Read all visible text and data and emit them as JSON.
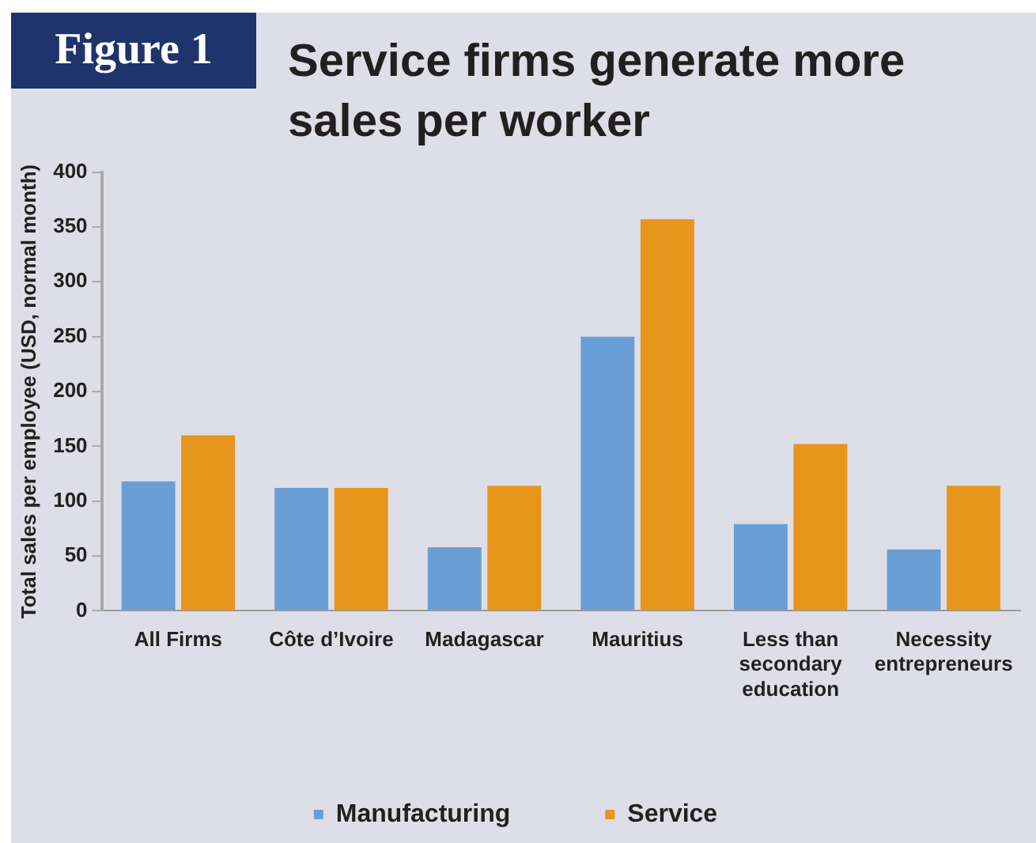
{
  "chart_data": {
    "type": "bar",
    "title": "Service firms generate more sales per worker",
    "annotations": [
      "Figure 1"
    ],
    "ylabel": "Total sales per employee (USD, normal month)",
    "categories": [
      "All Firms",
      "Côte d’Ivoire",
      "Madagascar",
      "Mauritius",
      "Less than secondary education",
      "Necessity entrepreneurs"
    ],
    "series": [
      {
        "name": "Manufacturing",
        "color": "#6a9fd5",
        "values": [
          118,
          112,
          58,
          250,
          79,
          56
        ]
      },
      {
        "name": "Service",
        "color": "#e8951b",
        "values": [
          160,
          112,
          114,
          357,
          152,
          114
        ]
      }
    ],
    "ylim": [
      0,
      400
    ],
    "yticks": [
      0,
      50,
      100,
      150,
      200,
      250,
      300,
      350,
      400
    ],
    "grid": false,
    "legend": "bottom"
  }
}
